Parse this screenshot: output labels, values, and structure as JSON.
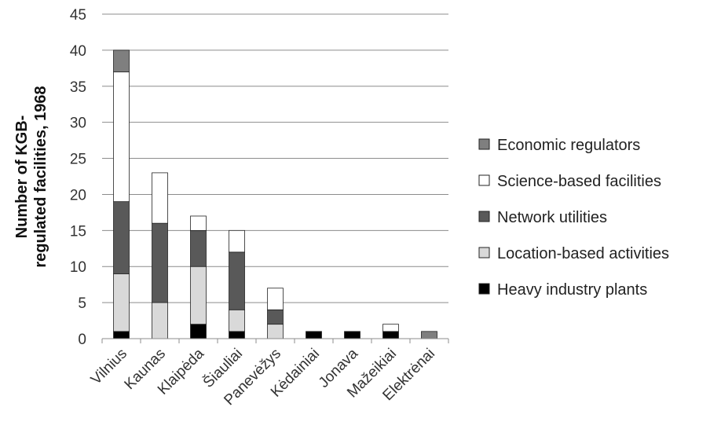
{
  "chart_data": {
    "type": "bar",
    "stacked": true,
    "categories": [
      "Vilnius",
      "Kaunas",
      "Klaipėda",
      "Šiauliai",
      "Panevėžys",
      "Kėdainiai",
      "Jonava",
      "Mažeikiai",
      "Elektrėnai"
    ],
    "series": [
      {
        "name": "Heavy industry plants",
        "color": "#000000",
        "values": [
          1,
          0,
          2,
          1,
          0,
          1,
          1,
          1,
          0
        ]
      },
      {
        "name": "Location-based activities",
        "color": "#d9d9d9",
        "values": [
          8,
          5,
          8,
          3,
          2,
          0,
          0,
          0,
          0
        ]
      },
      {
        "name": "Network utilities",
        "color": "#595959",
        "values": [
          10,
          11,
          5,
          8,
          2,
          0,
          0,
          0,
          0
        ]
      },
      {
        "name": "Science-based facilities",
        "color": "#ffffff",
        "values": [
          18,
          7,
          2,
          3,
          3,
          0,
          0,
          1,
          0
        ]
      },
      {
        "name": "Economic regulators",
        "color": "#7f7f7f",
        "values": [
          3,
          0,
          0,
          0,
          0,
          0,
          0,
          0,
          1
        ]
      }
    ],
    "legend_order": [
      "Economic regulators",
      "Science-based facilities",
      "Network utilities",
      "Location-based activities",
      "Heavy industry plants"
    ],
    "ylabel_lines": [
      "Number of KGB-",
      "regulated facilities, 1968"
    ],
    "ylim": [
      0,
      45
    ],
    "yticks": [
      0,
      5,
      10,
      15,
      20,
      25,
      30,
      35,
      40,
      45
    ],
    "grid": true,
    "legend_position": "right"
  }
}
